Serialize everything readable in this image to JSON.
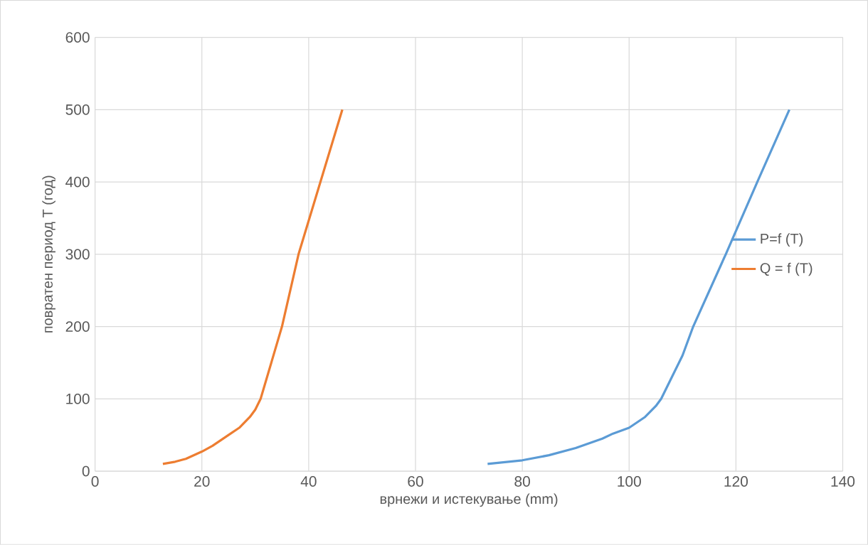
{
  "chart_data": {
    "type": "line",
    "xlabel": "врнежи и истекување (mm)",
    "ylabel": "повратен период T (год)",
    "xlim": [
      0,
      140
    ],
    "ylim": [
      0,
      600
    ],
    "xticks": [
      0,
      20,
      40,
      60,
      80,
      100,
      120,
      140
    ],
    "yticks": [
      0,
      100,
      200,
      300,
      400,
      500,
      600
    ],
    "grid": true,
    "legend": "right",
    "marker": "none",
    "line_style": "solid",
    "series": [
      {
        "name": "P=f (T)",
        "color": "#5b9bd5",
        "x": [
          73.5,
          80,
          85,
          90,
          95,
          97,
          100,
          103,
          105,
          106,
          108,
          110,
          112,
          118.1,
          124,
          130
        ],
        "values": [
          10,
          15,
          22,
          32,
          45,
          52,
          60,
          75,
          90,
          100,
          130,
          160,
          200,
          300,
          400,
          500
        ]
      },
      {
        "name": "Q = f (T)",
        "color": "#ed7d31",
        "x": [
          12.7,
          15,
          17,
          20,
          22,
          25,
          27,
          29,
          30,
          31,
          33,
          35,
          38.1,
          42.2,
          46.3
        ],
        "values": [
          10,
          13,
          17,
          27,
          35,
          50,
          60,
          75,
          85,
          100,
          150,
          200,
          300,
          400,
          500
        ]
      }
    ]
  }
}
